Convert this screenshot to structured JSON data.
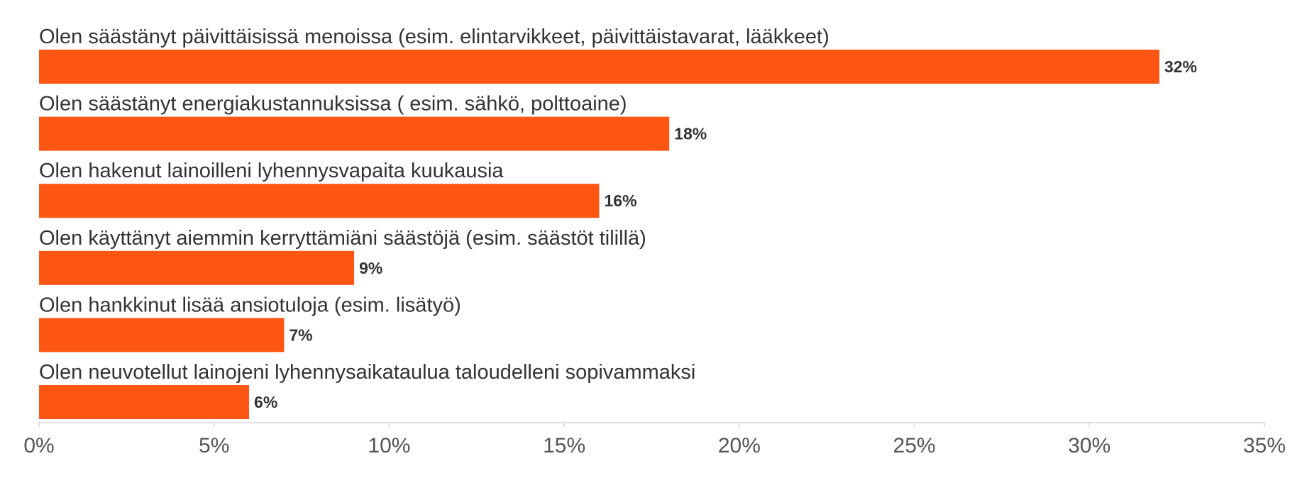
{
  "chart_data": {
    "type": "bar",
    "orientation": "horizontal",
    "categories": [
      "Olen säästänyt päivittäisissä menoissa (esim. elintarvikkeet, päivittäistavarat, lääkkeet)",
      "Olen säästänyt energiakustannuksissa ( esim. sähkö, polttoaine)",
      "Olen hakenut lainoilleni lyhennysvapaita kuukausia",
      "Olen käyttänyt aiemmin kerryttämiäni säästöjä (esim. säästöt tilillä)",
      "Olen hankkinut lisää ansiotuloja (esim. lisätyö)",
      "Olen neuvotellut lainojeni lyhennysaikataulua taloudelleni sopivammaksi"
    ],
    "values": [
      32,
      18,
      16,
      9,
      7,
      6
    ],
    "value_labels": [
      "32%",
      "18%",
      "16%",
      "9%",
      "7%",
      "6%"
    ],
    "xlim": [
      0,
      35
    ],
    "xticks": [
      "0%",
      "5%",
      "10%",
      "15%",
      "20%",
      "25%",
      "30%",
      "35%"
    ],
    "bar_color": "#ff5614",
    "grid": false,
    "title": "",
    "xlabel": "",
    "ylabel": ""
  }
}
